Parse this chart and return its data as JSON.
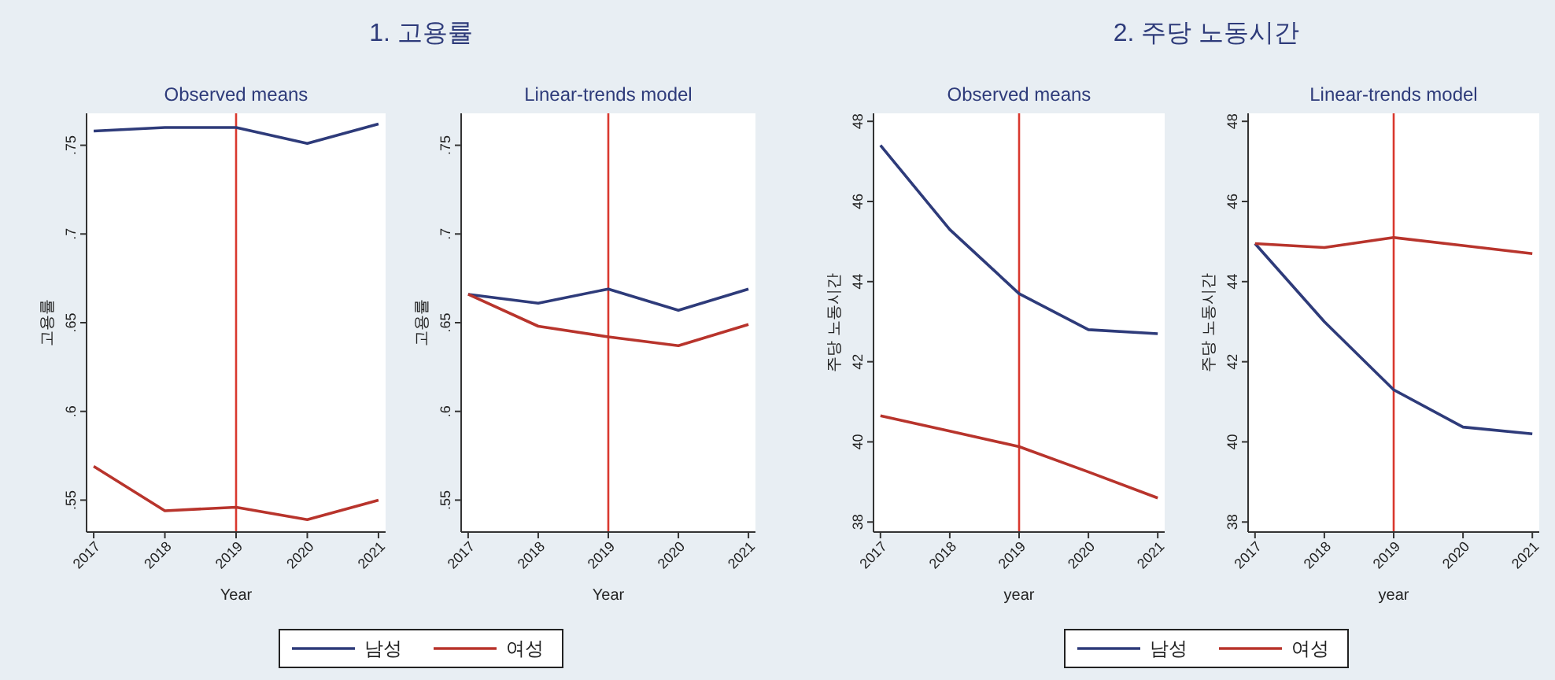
{
  "chart_data": [
    {
      "type": "line",
      "title": "1. 고용률",
      "subtitle": "Observed means",
      "xlabel": "Year",
      "ylabel": "고용률",
      "x": [
        2017,
        2018,
        2019,
        2020,
        2021
      ],
      "xlim": [
        2016.9,
        2021.1
      ],
      "xticks": [
        2017,
        2018,
        2019,
        2020,
        2021
      ],
      "ylim": [
        0.532,
        0.768
      ],
      "yticks": [
        {
          "value": 0.55,
          "label": ".55"
        },
        {
          "value": 0.6,
          "label": ".6"
        },
        {
          "value": 0.65,
          "label": ".65"
        },
        {
          "value": 0.7,
          "label": ".7"
        },
        {
          "value": 0.75,
          "label": ".75"
        }
      ],
      "ref_lines": [
        {
          "axis": "x",
          "value": 2019,
          "color": "#d9382e"
        }
      ],
      "legend": "bottom",
      "grid": false,
      "series": [
        {
          "name": "남성",
          "color": "#2e3b7a",
          "values": [
            0.758,
            0.76,
            0.76,
            0.751,
            0.762
          ]
        },
        {
          "name": "여성",
          "color": "#b8342c",
          "values": [
            0.569,
            0.544,
            0.546,
            0.539,
            0.55
          ]
        }
      ]
    },
    {
      "type": "line",
      "subtitle": "Linear-trends model",
      "xlabel": "Year",
      "ylabel": "고용률",
      "x": [
        2017,
        2018,
        2019,
        2020,
        2021
      ],
      "xlim": [
        2016.9,
        2021.1
      ],
      "xticks": [
        2017,
        2018,
        2019,
        2020,
        2021
      ],
      "ylim": [
        0.532,
        0.768
      ],
      "yticks": [
        {
          "value": 0.55,
          "label": ".55"
        },
        {
          "value": 0.6,
          "label": ".6"
        },
        {
          "value": 0.65,
          "label": ".65"
        },
        {
          "value": 0.7,
          "label": ".7"
        },
        {
          "value": 0.75,
          "label": ".75"
        }
      ],
      "ref_lines": [
        {
          "axis": "x",
          "value": 2019,
          "color": "#d9382e"
        }
      ],
      "grid": false,
      "series": [
        {
          "color": "#2e3b7a",
          "values": [
            0.666,
            0.661,
            0.669,
            0.657,
            0.669
          ]
        },
        {
          "color": "#b8342c",
          "values": [
            0.666,
            0.648,
            0.642,
            0.637,
            0.649
          ]
        }
      ]
    },
    {
      "type": "line",
      "title": "2. 주당 노동시간",
      "subtitle": "Observed means",
      "xlabel": "year",
      "ylabel": "주당 노동시간",
      "x": [
        2017,
        2018,
        2019,
        2020,
        2021
      ],
      "xlim": [
        2016.9,
        2021.1
      ],
      "xticks": [
        2017,
        2018,
        2019,
        2020,
        2021
      ],
      "ylim": [
        37.75,
        48.2
      ],
      "yticks": [
        38,
        40,
        42,
        44,
        46,
        48
      ],
      "ref_lines": [
        {
          "axis": "x",
          "value": 2019,
          "color": "#d9382e"
        }
      ],
      "legend": "bottom",
      "grid": false,
      "series": [
        {
          "name": "남성",
          "color": "#2e3b7a",
          "values": [
            47.4,
            45.3,
            43.7,
            42.8,
            42.7
          ]
        },
        {
          "name": "여성",
          "color": "#b8342c",
          "values": [
            40.65,
            40.27,
            39.88,
            39.25,
            38.6
          ]
        }
      ]
    },
    {
      "type": "line",
      "subtitle": "Linear-trends model",
      "xlabel": "year",
      "ylabel": "주당 노동시간",
      "x": [
        2017,
        2018,
        2019,
        2020,
        2021
      ],
      "xlim": [
        2016.9,
        2021.1
      ],
      "xticks": [
        2017,
        2018,
        2019,
        2020,
        2021
      ],
      "ylim": [
        37.75,
        48.2
      ],
      "yticks": [
        38,
        40,
        42,
        44,
        46,
        48
      ],
      "ref_lines": [
        {
          "axis": "x",
          "value": 2019,
          "color": "#d9382e"
        }
      ],
      "grid": false,
      "series": [
        {
          "color": "#2e3b7a",
          "values": [
            44.95,
            43.0,
            41.3,
            40.37,
            40.2
          ]
        },
        {
          "color": "#b8342c",
          "values": [
            44.95,
            44.85,
            45.1,
            44.9,
            44.7
          ]
        }
      ]
    }
  ]
}
